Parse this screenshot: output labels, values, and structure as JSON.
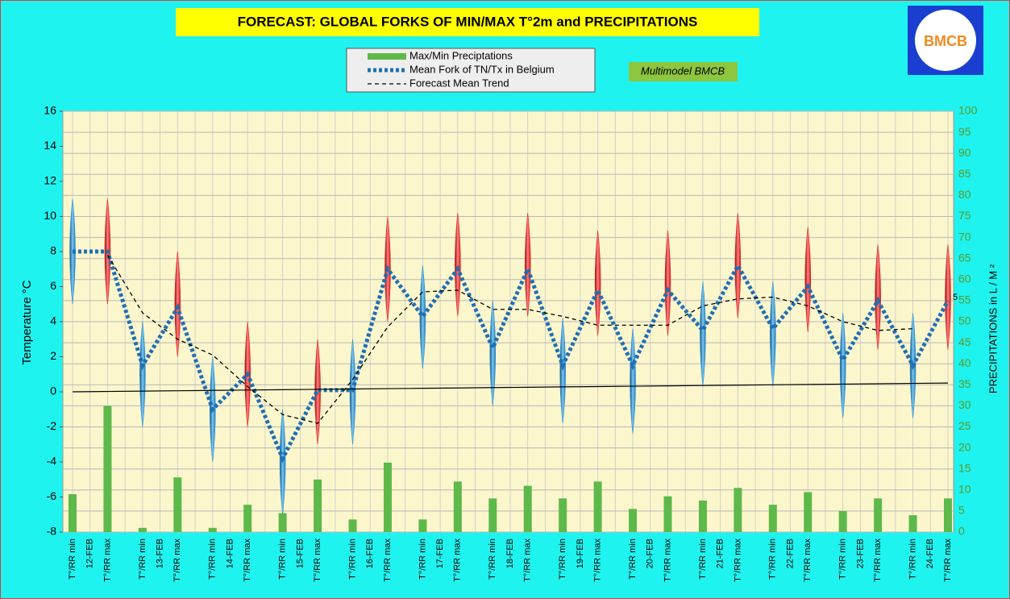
{
  "logo": "BMCB",
  "chart_data": {
    "type": "combo",
    "title": "FORECAST: GLOBAL FORKS OF  MIN/MAX T°2m and PRECIPITATIONS",
    "annotation": "Multimodel BMCB",
    "ylabel": "Temperature  °C",
    "y2label": "PRECIPITATIONS in L / M ²",
    "categories": [
      "T°/RR min",
      "T°/RR max",
      "T°/RR min",
      "T°/RR max",
      "T°/RR min",
      "T°/RR max",
      "T°/RR min",
      "T°/RR max",
      "T°/RR min",
      "T°/RR max",
      "T°/RR min",
      "T°/RR max",
      "T°/RR min",
      "T°/RR max",
      "T°/RR min",
      "T°/RR max",
      "T°/RR min",
      "T°/RR max",
      "T°/RR min",
      "T°/RR max",
      "T°/RR min",
      "T°/RR max",
      "T°/RR min",
      "T°/RR max",
      "T°/RR min",
      "T°/RR max"
    ],
    "dates": [
      "12-FEB",
      "13-FEB",
      "14-FEB",
      "15-FEB",
      "16-FEB",
      "17-FEB",
      "18-FEB",
      "19-FEB",
      "20-FEB",
      "21-FEB",
      "22-FEB",
      "23-FEB",
      "24-FEB"
    ],
    "ylim": [
      -8,
      16
    ],
    "yticks": [
      -8,
      -6,
      -4,
      -2,
      0,
      2,
      4,
      6,
      8,
      10,
      12,
      14,
      16
    ],
    "y2lim": [
      0,
      100
    ],
    "y2ticks": [
      0,
      5,
      10,
      15,
      20,
      25,
      30,
      35,
      40,
      45,
      50,
      55,
      60,
      65,
      70,
      75,
      80,
      85,
      90,
      95,
      100
    ],
    "grid": true,
    "series": [
      {
        "name": "Max/Min Preciptations",
        "type": "bar",
        "axis": "y2",
        "color": "#5db94a",
        "values": [
          9,
          30,
          1,
          13,
          1,
          6.5,
          4.5,
          12.5,
          3,
          16.5,
          3,
          12,
          8,
          11,
          8,
          12,
          5.5,
          8.5,
          7.5,
          10.5,
          6.5,
          9.5,
          5,
          8,
          4,
          8
        ]
      },
      {
        "name": "Mean Fork of TN/Tx in Belgium",
        "type": "line",
        "style": "dotted",
        "color": "#1f6fb3",
        "values": [
          8,
          8,
          1.5,
          4.8,
          -1,
          1,
          -3.8,
          0.1,
          0.1,
          7,
          4.3,
          7,
          2.5,
          7,
          1.5,
          5.8,
          1.5,
          5.8,
          3.5,
          7.2,
          3.6,
          6,
          1.8,
          5.2,
          1.5,
          5.2
        ],
        "value_labels": [
          null,
          null,
          null,
          null,
          null,
          null,
          null,
          null,
          null,
          null,
          null,
          null,
          null,
          null,
          null,
          null,
          null,
          null,
          null,
          null,
          null,
          null,
          null,
          null,
          null,
          "5"
        ]
      },
      {
        "name": "Forecast Mean Trend",
        "type": "line",
        "style": "dashed",
        "color": "#000000",
        "values": [
          null,
          7.8,
          4.5,
          3,
          2.1,
          0.3,
          -1.3,
          -1.8,
          0.7,
          3.7,
          5.7,
          5.8,
          4.7,
          4.7,
          4.3,
          3.8,
          3.8,
          3.8,
          4.9,
          5.3,
          5.4,
          4.9,
          4,
          3.5,
          3.6,
          null
        ]
      },
      {
        "type": "line",
        "style": "solid",
        "color": "#000000",
        "values": [
          0,
          0.02,
          0.04,
          0.06,
          0.08,
          0.1,
          0.12,
          0.14,
          0.16,
          0.18,
          0.2,
          0.22,
          0.24,
          0.26,
          0.28,
          0.3,
          0.32,
          0.34,
          0.36,
          0.38,
          0.4,
          0.42,
          0.44,
          0.46,
          0.48,
          0.5
        ]
      }
    ],
    "ranges": {
      "colors": [
        "#2a8fd0",
        "#e02020"
      ],
      "low": [
        5,
        5,
        -2,
        2,
        -4,
        -2,
        -7,
        -3,
        -3,
        4,
        1.3,
        4.3,
        -0.8,
        4.3,
        -1.8,
        3.2,
        -2.4,
        3.2,
        0.3,
        4.2,
        0.3,
        3.4,
        -1.5,
        2.4,
        -1.5,
        2.4
      ],
      "high": [
        11,
        11,
        4,
        8,
        2,
        4,
        -1,
        3,
        3,
        10,
        7.2,
        10.2,
        5.2,
        10.2,
        4.2,
        9.2,
        3.6,
        9.2,
        6.3,
        10.2,
        6.3,
        9.4,
        4.5,
        8.4,
        4.5,
        8.4
      ]
    }
  }
}
